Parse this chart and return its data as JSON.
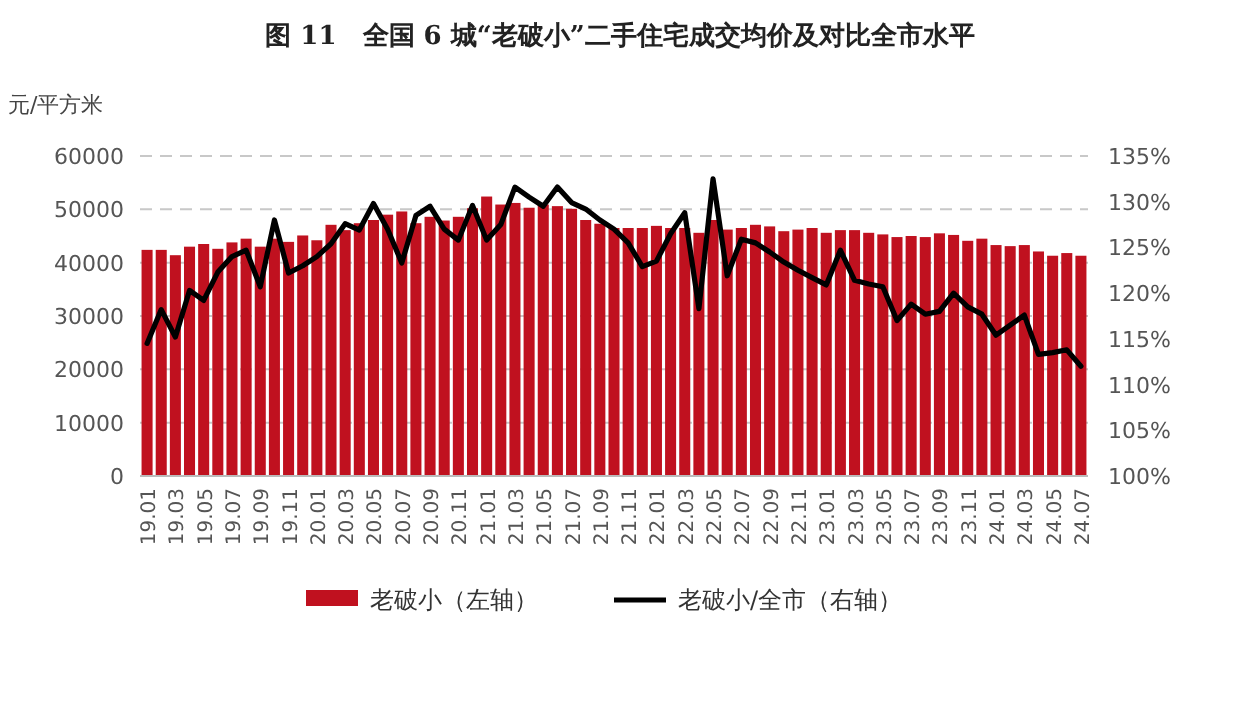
{
  "chart_data": {
    "type": "bar",
    "title": "图 11　全国 6 城“老破小”二手住宅成交均价及对比全市水平",
    "ylabel": "元/平方米",
    "categories": [
      "19.01",
      null,
      "19.03",
      null,
      "19.05",
      null,
      "19.07",
      null,
      "19.09",
      null,
      "19.11",
      null,
      "20.01",
      null,
      "20.03",
      null,
      "20.05",
      null,
      "20.07",
      null,
      "20.09",
      null,
      "20.11",
      null,
      "21.01",
      null,
      "21.03",
      null,
      "21.05",
      null,
      "21.07",
      null,
      "21.09",
      null,
      "21.11",
      null,
      "22.01",
      null,
      "22.03",
      null,
      "22.05",
      null,
      "22.07",
      null,
      "22.09",
      null,
      "22.11",
      null,
      "23.01",
      null,
      "23.03",
      null,
      "23.05",
      null,
      "23.07",
      null,
      "23.09",
      null,
      "23.11",
      null,
      "24.01",
      null,
      "24.03",
      null,
      "24.05",
      null,
      "24.07"
    ],
    "series": [
      {
        "name": "老破小（左轴）",
        "color": "#c0111f",
        "values": [
          42400,
          42400,
          41400,
          43000,
          43500,
          42600,
          43800,
          44500,
          43000,
          44500,
          43900,
          45100,
          44200,
          47100,
          46100,
          47400,
          48000,
          49000,
          49600,
          47400,
          48600,
          47900,
          48600,
          50200,
          52400,
          50900,
          51200,
          50300,
          50900,
          50600,
          50100,
          48000,
          47300,
          46500,
          46500,
          46500,
          46900,
          46500,
          46500,
          45600,
          48000,
          46200,
          46500,
          47100,
          46800,
          45900,
          46200,
          46500,
          45600,
          46100,
          46100,
          45600,
          45300,
          44800,
          45000,
          44800,
          45500,
          45200,
          44100,
          44500,
          43300,
          43100,
          43300,
          42100,
          41300,
          41800,
          41300
        ]
      },
      {
        "name": "老破小/全市（右轴）",
        "type": "line",
        "axis": "y2",
        "color": "#000000",
        "values": [
          114.5,
          118.2,
          115.2,
          120.3,
          119.2,
          122.3,
          124,
          124.7,
          120.7,
          128,
          122.2,
          123,
          124,
          125.4,
          127.6,
          126.9,
          129.8,
          127,
          123.3,
          128.5,
          129.5,
          127,
          125.8,
          129.6,
          125.8,
          127.5,
          131.6,
          130.5,
          129.5,
          131.6,
          129.9,
          129.2,
          128,
          127,
          125.5,
          122.9,
          123.5,
          126.5,
          128.8,
          118.3,
          132.5,
          121.9,
          125.9,
          125.5,
          124.5,
          123.4,
          122.5,
          121.7,
          120.9,
          124.7,
          121.4,
          121,
          120.7,
          117,
          118.8,
          117.7,
          118,
          120,
          118.5,
          117.7,
          115.4,
          116.5,
          117.6,
          113.3,
          113.5,
          113.8,
          112
        ]
      }
    ],
    "ylim": [
      0,
      60000
    ],
    "yticks": [
      0,
      10000,
      20000,
      30000,
      40000,
      50000,
      60000
    ],
    "y2lim": [
      100,
      135
    ],
    "y2ticks": [
      {
        "value": 100,
        "label": "100%"
      },
      {
        "value": 105,
        "label": "105%"
      },
      {
        "value": 110,
        "label": "110%"
      },
      {
        "value": 115,
        "label": "115%"
      },
      {
        "value": 120,
        "label": "120%"
      },
      {
        "value": 125,
        "label": "125%"
      },
      {
        "value": 130,
        "label": "130%"
      },
      {
        "value": 135,
        "label": "135%"
      }
    ],
    "grid": "y",
    "legend": "bottom",
    "marker": "none",
    "line_style": "solid"
  }
}
